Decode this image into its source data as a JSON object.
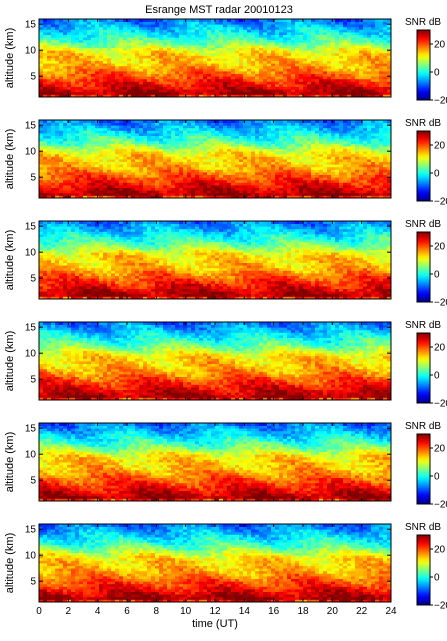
{
  "title": "Esrange MST radar 20010123",
  "colorbar": {
    "label": "SNR dB",
    "ticks": [
      20,
      0,
      -20
    ],
    "colormap": "jet"
  },
  "chart_data": [
    {
      "type": "heatmap",
      "panel": 1,
      "xlabel": "",
      "ylabel": "altitude (km)",
      "xlim": [
        0,
        24
      ],
      "ylim": [
        1,
        16
      ],
      "yticks": [
        5,
        10,
        15
      ],
      "zlim": [
        -20,
        30
      ],
      "z_label": "SNR dB"
    },
    {
      "type": "heatmap",
      "panel": 2,
      "xlabel": "",
      "ylabel": "altitude (km)",
      "xlim": [
        0,
        24
      ],
      "ylim": [
        1,
        16
      ],
      "yticks": [
        5,
        10,
        15
      ],
      "zlim": [
        -20,
        30
      ],
      "z_label": "SNR dB"
    },
    {
      "type": "heatmap",
      "panel": 3,
      "xlabel": "",
      "ylabel": "altitude (km)",
      "xlim": [
        0,
        24
      ],
      "ylim": [
        1,
        16
      ],
      "yticks": [
        5,
        10,
        15
      ],
      "zlim": [
        -20,
        30
      ],
      "z_label": "SNR dB"
    },
    {
      "type": "heatmap",
      "panel": 4,
      "xlabel": "",
      "ylabel": "altitude (km)",
      "xlim": [
        0,
        24
      ],
      "ylim": [
        1,
        16
      ],
      "yticks": [
        5,
        10,
        15
      ],
      "zlim": [
        -20,
        30
      ],
      "z_label": "SNR dB"
    },
    {
      "type": "heatmap",
      "panel": 5,
      "xlabel": "",
      "ylabel": "altitude (km)",
      "xlim": [
        0,
        24
      ],
      "ylim": [
        1,
        16
      ],
      "yticks": [
        5,
        10,
        15
      ],
      "zlim": [
        -20,
        30
      ],
      "z_label": "SNR dB"
    },
    {
      "type": "heatmap",
      "panel": 6,
      "xlabel": "time (UT)",
      "ylabel": "altitude (km)",
      "xlim": [
        0,
        24
      ],
      "ylim": [
        1,
        16
      ],
      "yticks": [
        5,
        10,
        15
      ],
      "xticks": [
        0,
        2,
        4,
        6,
        8,
        10,
        12,
        14,
        16,
        18,
        20,
        22,
        24
      ],
      "zlim": [
        -20,
        30
      ],
      "z_label": "SNR dB"
    }
  ]
}
